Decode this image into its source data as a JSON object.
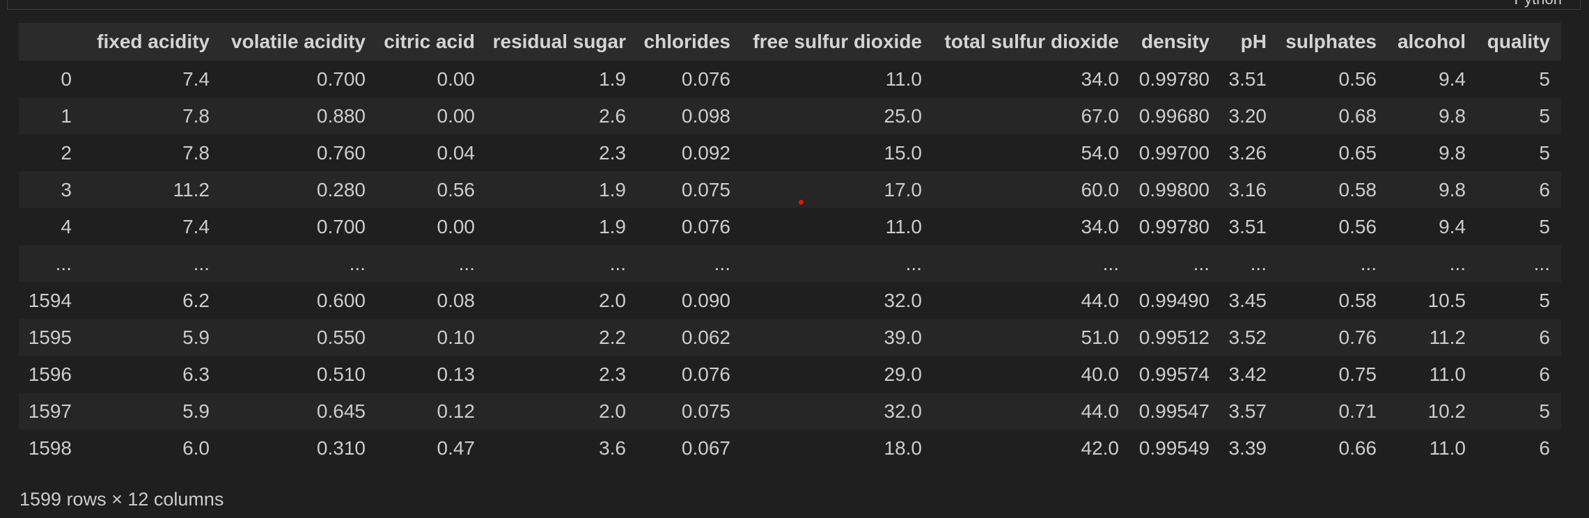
{
  "cell": {
    "language_label": "Python"
  },
  "table": {
    "columns": [
      "fixed acidity",
      "volatile acidity",
      "citric acid",
      "residual sugar",
      "chlorides",
      "free sulfur dioxide",
      "total sulfur dioxide",
      "density",
      "pH",
      "sulphates",
      "alcohol",
      "quality"
    ],
    "rows": [
      {
        "index": "0",
        "values": [
          "7.4",
          "0.700",
          "0.00",
          "1.9",
          "0.076",
          "11.0",
          "34.0",
          "0.99780",
          "3.51",
          "0.56",
          "9.4",
          "5"
        ]
      },
      {
        "index": "1",
        "values": [
          "7.8",
          "0.880",
          "0.00",
          "2.6",
          "0.098",
          "25.0",
          "67.0",
          "0.99680",
          "3.20",
          "0.68",
          "9.8",
          "5"
        ]
      },
      {
        "index": "2",
        "values": [
          "7.8",
          "0.760",
          "0.04",
          "2.3",
          "0.092",
          "15.0",
          "54.0",
          "0.99700",
          "3.26",
          "0.65",
          "9.8",
          "5"
        ]
      },
      {
        "index": "3",
        "values": [
          "11.2",
          "0.280",
          "0.56",
          "1.9",
          "0.075",
          "17.0",
          "60.0",
          "0.99800",
          "3.16",
          "0.58",
          "9.8",
          "6"
        ]
      },
      {
        "index": "4",
        "values": [
          "7.4",
          "0.700",
          "0.00",
          "1.9",
          "0.076",
          "11.0",
          "34.0",
          "0.99780",
          "3.51",
          "0.56",
          "9.4",
          "5"
        ]
      },
      {
        "index": "...",
        "values": [
          "...",
          "...",
          "...",
          "...",
          "...",
          "...",
          "...",
          "...",
          "...",
          "...",
          "...",
          "..."
        ]
      },
      {
        "index": "1594",
        "values": [
          "6.2",
          "0.600",
          "0.08",
          "2.0",
          "0.090",
          "32.0",
          "44.0",
          "0.99490",
          "3.45",
          "0.58",
          "10.5",
          "5"
        ]
      },
      {
        "index": "1595",
        "values": [
          "5.9",
          "0.550",
          "0.10",
          "2.2",
          "0.062",
          "39.0",
          "51.0",
          "0.99512",
          "3.52",
          "0.76",
          "11.2",
          "6"
        ]
      },
      {
        "index": "1596",
        "values": [
          "6.3",
          "0.510",
          "0.13",
          "2.3",
          "0.076",
          "29.0",
          "40.0",
          "0.99574",
          "3.42",
          "0.75",
          "11.0",
          "6"
        ]
      },
      {
        "index": "1597",
        "values": [
          "5.9",
          "0.645",
          "0.12",
          "2.0",
          "0.075",
          "32.0",
          "44.0",
          "0.99547",
          "3.57",
          "0.71",
          "10.2",
          "5"
        ]
      },
      {
        "index": "1598",
        "values": [
          "6.0",
          "0.310",
          "0.47",
          "3.6",
          "0.067",
          "18.0",
          "42.0",
          "0.99549",
          "3.39",
          "0.66",
          "11.0",
          "6"
        ]
      }
    ],
    "summary": "1599 rows × 12 columns"
  },
  "colors": {
    "background": "#1f1f1f",
    "header_background": "#2b2b2b",
    "stripe_background": "#262626",
    "text": "#cccccc",
    "marker_dot": "#e51400"
  }
}
